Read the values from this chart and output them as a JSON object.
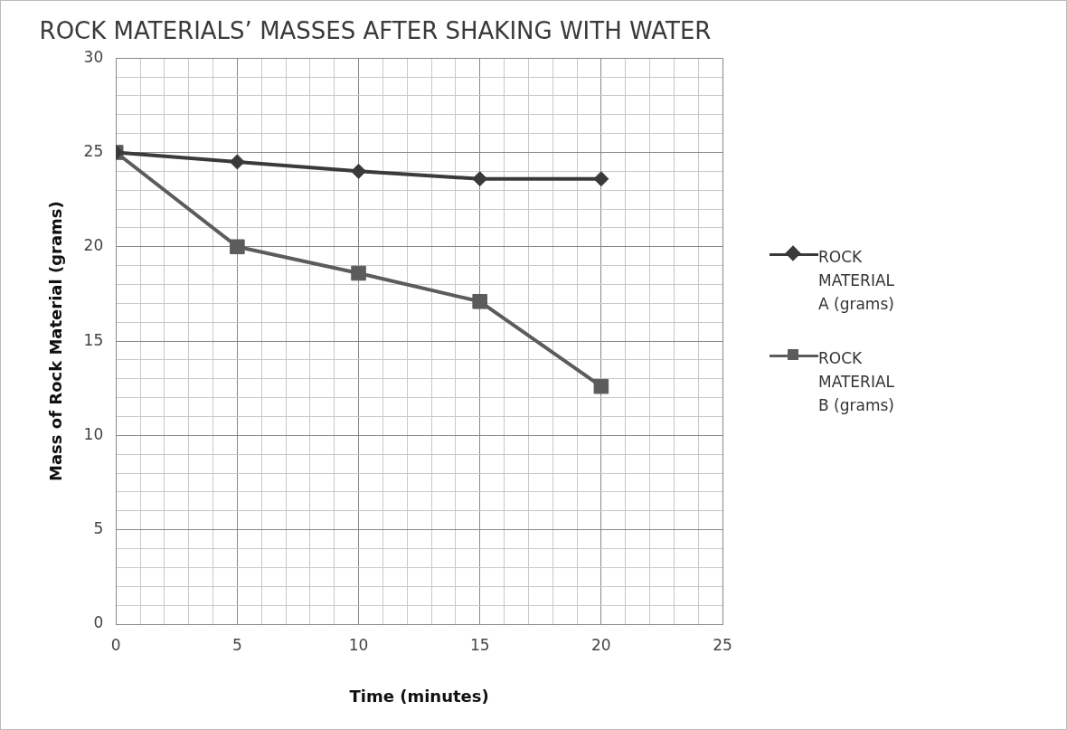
{
  "chart_data": {
    "type": "line",
    "title": "ROCK MATERIALS’ MASSES AFTER SHAKING WITH WATER",
    "xlabel": "Time (minutes)",
    "ylabel": "Mass of Rock Material (grams)",
    "x": [
      0,
      5,
      10,
      15,
      20
    ],
    "series": [
      {
        "name": "ROCK MATERIAL A (grams)",
        "color": "#3a3a3a",
        "marker": "diamond",
        "values": [
          25,
          24.5,
          24,
          23.6,
          23.6
        ]
      },
      {
        "name": "ROCK MATERIAL B (grams)",
        "color": "#5c5c5c",
        "marker": "square",
        "values": [
          25,
          20,
          18.6,
          17.1,
          12.6
        ]
      }
    ],
    "xlim": [
      0,
      25
    ],
    "ylim": [
      0,
      30
    ],
    "xticks": [
      0,
      {
        "value": 1,
        "label": null
      },
      {
        "value": 2,
        "label": null
      },
      {
        "value": 3,
        "label": null
      },
      {
        "value": 4,
        "label": null
      },
      5,
      {
        "value": 6,
        "label": null
      },
      {
        "value": 7,
        "label": null
      },
      {
        "value": 8,
        "label": null
      },
      {
        "value": 9,
        "label": null
      },
      10,
      {
        "value": 11,
        "label": null
      },
      {
        "value": 12,
        "label": null
      },
      {
        "value": 13,
        "label": null
      },
      {
        "value": 14,
        "label": null
      },
      15,
      {
        "value": 16,
        "label": null
      },
      {
        "value": 17,
        "label": null
      },
      {
        "value": 18,
        "label": null
      },
      {
        "value": 19,
        "label": null
      },
      20,
      {
        "value": 21,
        "label": null
      },
      {
        "value": 22,
        "label": null
      },
      {
        "value": 23,
        "label": null
      },
      {
        "value": 24,
        "label": null
      },
      25
    ],
    "yticks": [
      0,
      {
        "value": 1,
        "label": null
      },
      {
        "value": 2,
        "label": null
      },
      {
        "value": 3,
        "label": null
      },
      {
        "value": 4,
        "label": null
      },
      5,
      {
        "value": 6,
        "label": null
      },
      {
        "value": 7,
        "label": null
      },
      {
        "value": 8,
        "label": null
      },
      {
        "value": 9,
        "label": null
      },
      10,
      {
        "value": 11,
        "label": null
      },
      {
        "value": 12,
        "label": null
      },
      {
        "value": 13,
        "label": null
      },
      {
        "value": 14,
        "label": null
      },
      15,
      {
        "value": 16,
        "label": null
      },
      {
        "value": 17,
        "label": null
      },
      {
        "value": 18,
        "label": null
      },
      {
        "value": 19,
        "label": null
      },
      20,
      {
        "value": 21,
        "label": null
      },
      {
        "value": 22,
        "label": null
      },
      {
        "value": 23,
        "label": null
      },
      {
        "value": 24,
        "label": null
      },
      25,
      {
        "value": 26,
        "label": null
      },
      {
        "value": 27,
        "label": null
      },
      {
        "value": 28,
        "label": null
      },
      {
        "value": 29,
        "label": null
      },
      30
    ],
    "grid": true,
    "legend": "right",
    "line_style": "solid"
  }
}
